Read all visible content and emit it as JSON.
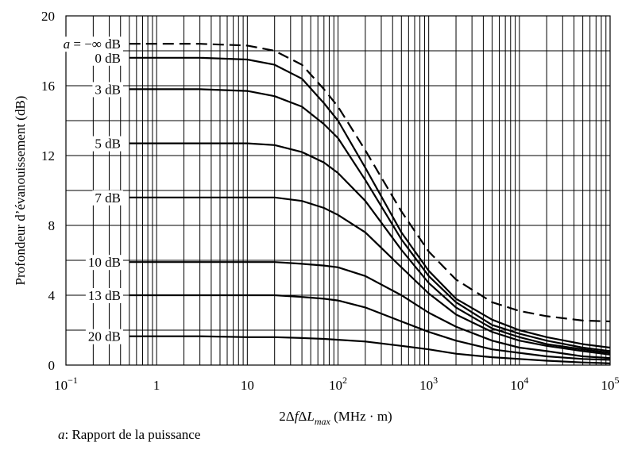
{
  "chart_data": {
    "type": "line",
    "title": "",
    "ylabel": "Profondeur d’évanouissement (dB)",
    "xlabel": {
      "prefix": "2Δ",
      "f": "f",
      "delta": "Δ",
      "L": "L",
      "sub": "max",
      "unit": " (MHz · m)"
    },
    "xscale": "log",
    "xlim": [
      0.1,
      100000
    ],
    "ylim": [
      0,
      20
    ],
    "grid": true,
    "x_tick_labels": [
      {
        "base": "10",
        "exp": "−1",
        "value": 0.1
      },
      {
        "base": "1",
        "exp": "",
        "value": 1
      },
      {
        "base": "10",
        "exp": "",
        "value": 10
      },
      {
        "base": "10",
        "exp": "2",
        "value": 100
      },
      {
        "base": "10",
        "exp": "3",
        "value": 1000
      },
      {
        "base": "10",
        "exp": "4",
        "value": 10000
      },
      {
        "base": "10",
        "exp": "5",
        "value": 100000
      }
    ],
    "y_tick_labels": [
      "0",
      "4",
      "8",
      "12",
      "16",
      "20"
    ],
    "y_tick_values": [
      0,
      4,
      8,
      12,
      16,
      20
    ],
    "series": [
      {
        "name": "a = −∞ dB",
        "label_prefix": "a",
        "label_rest": " = −∞ dB",
        "dashed": true,
        "x": [
          0.5,
          1,
          3,
          10,
          20,
          40,
          70,
          100,
          200,
          500,
          1000,
          2000,
          5000,
          10000,
          20000,
          50000,
          100000
        ],
        "y": [
          18.4,
          18.4,
          18.4,
          18.3,
          18.0,
          17.2,
          15.8,
          14.8,
          12.3,
          8.8,
          6.5,
          4.9,
          3.6,
          3.1,
          2.8,
          2.55,
          2.5
        ]
      },
      {
        "name": "0 dB",
        "label_prefix": "",
        "label_rest": "0 dB",
        "dashed": false,
        "x": [
          0.5,
          1,
          3,
          10,
          20,
          40,
          70,
          100,
          200,
          500,
          1000,
          2000,
          5000,
          10000,
          20000,
          50000,
          100000
        ],
        "y": [
          17.6,
          17.6,
          17.6,
          17.5,
          17.2,
          16.4,
          15.0,
          14.0,
          11.3,
          7.6,
          5.4,
          3.8,
          2.6,
          2.0,
          1.6,
          1.2,
          1.0
        ]
      },
      {
        "name": "3 dB",
        "label_prefix": "",
        "label_rest": "3 dB",
        "dashed": false,
        "x": [
          0.5,
          1,
          3,
          10,
          20,
          40,
          70,
          100,
          200,
          500,
          1000,
          2000,
          5000,
          10000,
          20000,
          50000,
          100000
        ],
        "y": [
          15.8,
          15.8,
          15.8,
          15.7,
          15.4,
          14.8,
          13.8,
          13.0,
          10.6,
          7.2,
          5.1,
          3.6,
          2.3,
          1.8,
          1.4,
          1.0,
          0.8
        ]
      },
      {
        "name": "5 dB",
        "label_prefix": "",
        "label_rest": "5 dB",
        "dashed": false,
        "x": [
          0.5,
          1,
          3,
          10,
          20,
          40,
          70,
          100,
          200,
          500,
          1000,
          2000,
          5000,
          10000,
          20000,
          50000,
          100000
        ],
        "y": [
          12.7,
          12.7,
          12.7,
          12.7,
          12.6,
          12.2,
          11.6,
          11.0,
          9.4,
          6.6,
          4.7,
          3.3,
          2.1,
          1.6,
          1.2,
          0.9,
          0.7
        ]
      },
      {
        "name": "7 dB",
        "label_prefix": "",
        "label_rest": "7 dB",
        "dashed": false,
        "x": [
          0.5,
          1,
          3,
          10,
          20,
          40,
          70,
          100,
          200,
          500,
          1000,
          2000,
          5000,
          10000,
          20000,
          50000,
          100000
        ],
        "y": [
          9.6,
          9.6,
          9.6,
          9.6,
          9.6,
          9.4,
          9.0,
          8.6,
          7.6,
          5.6,
          4.1,
          2.9,
          1.9,
          1.4,
          1.1,
          0.8,
          0.6
        ]
      },
      {
        "name": "10 dB",
        "label_prefix": "",
        "label_rest": "10 dB",
        "dashed": false,
        "x": [
          0.5,
          1,
          3,
          10,
          20,
          40,
          70,
          100,
          200,
          500,
          1000,
          2000,
          5000,
          10000,
          20000,
          50000,
          100000
        ],
        "y": [
          5.9,
          5.9,
          5.9,
          5.9,
          5.9,
          5.8,
          5.7,
          5.6,
          5.1,
          4.0,
          3.0,
          2.2,
          1.4,
          1.0,
          0.8,
          0.5,
          0.4
        ]
      },
      {
        "name": "13 dB",
        "label_prefix": "",
        "label_rest": "13 dB",
        "dashed": false,
        "x": [
          0.5,
          1,
          3,
          10,
          20,
          40,
          70,
          100,
          200,
          500,
          1000,
          2000,
          5000,
          10000,
          20000,
          50000,
          100000
        ],
        "y": [
          4.0,
          4.0,
          4.0,
          4.0,
          4.0,
          3.9,
          3.8,
          3.7,
          3.3,
          2.5,
          1.9,
          1.4,
          0.9,
          0.7,
          0.5,
          0.35,
          0.3
        ]
      },
      {
        "name": "20 dB",
        "label_prefix": "",
        "label_rest": "20 dB",
        "dashed": false,
        "x": [
          0.5,
          1,
          3,
          10,
          20,
          40,
          70,
          100,
          200,
          500,
          1000,
          2000,
          5000,
          10000,
          20000,
          50000,
          100000
        ],
        "y": [
          1.65,
          1.65,
          1.65,
          1.6,
          1.6,
          1.55,
          1.5,
          1.45,
          1.35,
          1.1,
          0.9,
          0.65,
          0.45,
          0.35,
          0.25,
          0.15,
          0.1
        ]
      }
    ]
  },
  "footnote": {
    "var": "a",
    "text": ": Rapport de la puissance"
  }
}
